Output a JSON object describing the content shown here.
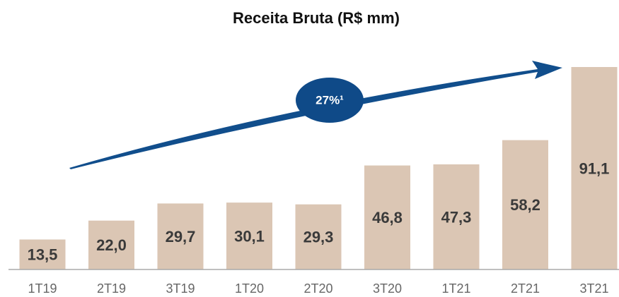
{
  "chart_data": {
    "type": "bar",
    "title": "Receita Bruta (R$ mm)",
    "categories": [
      "1T19",
      "2T19",
      "3T19",
      "1T20",
      "2T20",
      "3T20",
      "1T21",
      "2T21",
      "3T21"
    ],
    "values": [
      13.5,
      22.0,
      29.7,
      30.1,
      29.3,
      46.8,
      47.3,
      58.2,
      91.1
    ],
    "value_labels": [
      "13,5",
      "22,0",
      "29,7",
      "30,1",
      "29,3",
      "46,8",
      "47,3",
      "58,2",
      "91,1"
    ],
    "color": "#dbc6b4",
    "annotations": [
      "27%¹"
    ]
  }
}
